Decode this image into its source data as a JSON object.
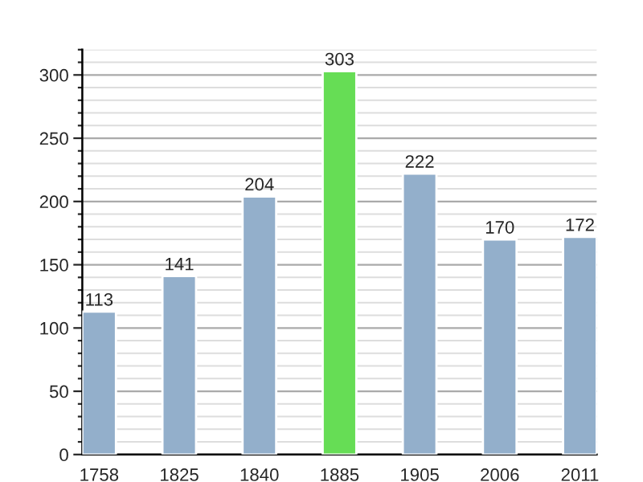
{
  "chart_data": {
    "type": "bar",
    "categories": [
      "1758",
      "1825",
      "1840",
      "1885",
      "1905",
      "2006",
      "2011"
    ],
    "values": [
      113,
      141,
      204,
      303,
      222,
      170,
      172
    ],
    "colors": [
      "#93afcb",
      "#93afcb",
      "#93afcb",
      "#66dd55",
      "#93afcb",
      "#93afcb",
      "#93afcb"
    ],
    "ylim": [
      0,
      320
    ],
    "yticks": [
      0,
      50,
      100,
      150,
      200,
      250,
      300
    ],
    "grid": "y",
    "data_labels": true,
    "legend": false
  }
}
